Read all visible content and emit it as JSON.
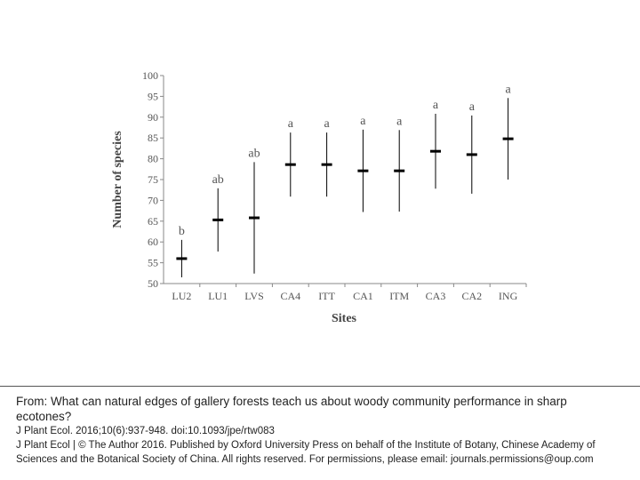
{
  "chart_data": {
    "type": "errorbar",
    "y_label": "Number of species",
    "x_label": "Sites",
    "categories": [
      "LU2",
      "LU1",
      "LVS",
      "CA4",
      "ITT",
      "CA1",
      "ITM",
      "CA3",
      "CA2",
      "ING"
    ],
    "series": [
      {
        "values": [
          56,
          65.3,
          65.8,
          78.6,
          78.6,
          77.1,
          77.1,
          81.8,
          81,
          84.8
        ],
        "errors": [
          4.5,
          7.6,
          13.4,
          7.7,
          7.7,
          9.9,
          9.8,
          9,
          9.4,
          9.8
        ],
        "color": "#000000"
      }
    ],
    "annotations": [
      "b",
      "ab",
      "ab",
      "a",
      "a",
      "a",
      "a",
      "a",
      "a",
      "a"
    ],
    "ylim": [
      50,
      100
    ],
    "yticks": [
      50,
      55,
      60,
      65,
      70,
      75,
      80,
      85,
      90,
      95,
      100
    ]
  },
  "caption": {
    "title": "From: What can natural edges of gallery forests teach us about woody community performance in sharp ecotones?",
    "citation": "J Plant Ecol. 2016;10(6):937-948. doi:10.1093/jpe/rtw083",
    "copyright": "J Plant Ecol | © The Author 2016. Published by Oxford University Press on behalf of the Institute of Botany, Chinese Academy of Sciences and the Botanical Society of China. All rights reserved. For permissions, please email: journals.permissions@oup.com"
  }
}
